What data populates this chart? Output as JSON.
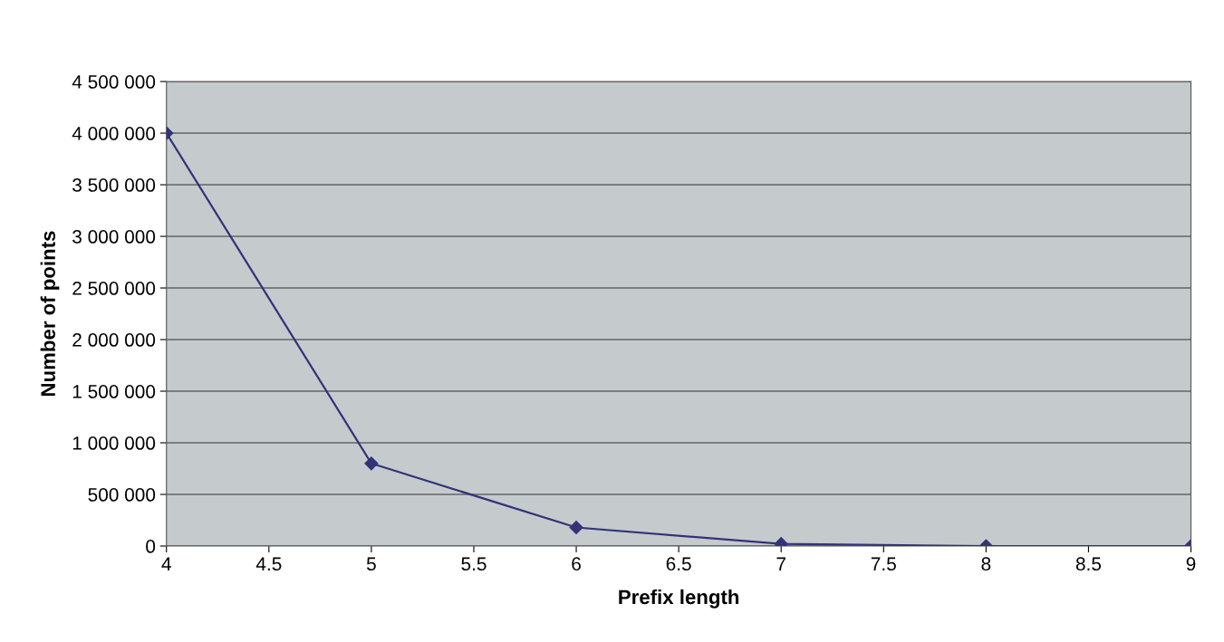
{
  "chart_data": {
    "type": "line",
    "xlabel": "Prefix length",
    "ylabel": "Number of points",
    "x": [
      4,
      5,
      6,
      7,
      8,
      9
    ],
    "series": [
      {
        "color": "#333378",
        "values": [
          4000000,
          800000,
          180000,
          20000,
          0,
          0
        ]
      }
    ],
    "marker": "diamond",
    "line_style": "solid",
    "grid": "y",
    "legend": false,
    "xlim": [
      4,
      9
    ],
    "xticks": [
      4,
      4.5,
      5,
      5.5,
      6,
      6.5,
      7,
      7.5,
      8,
      8.5,
      9
    ],
    "ylim": [
      0,
      4500000
    ],
    "yticks": [
      {
        "value": 0,
        "label": "0"
      },
      {
        "value": 500000,
        "label": "500 000"
      },
      {
        "value": 1000000,
        "label": "1 000 000"
      },
      {
        "value": 1500000,
        "label": "1 500 000"
      },
      {
        "value": 2000000,
        "label": "2 000 000"
      },
      {
        "value": 2500000,
        "label": "2 500 000"
      },
      {
        "value": 3000000,
        "label": "3 000 000"
      },
      {
        "value": 3500000,
        "label": "3 500 000"
      },
      {
        "value": 4000000,
        "label": "4 000 000"
      },
      {
        "value": 4500000,
        "label": "4 500 000"
      }
    ]
  }
}
